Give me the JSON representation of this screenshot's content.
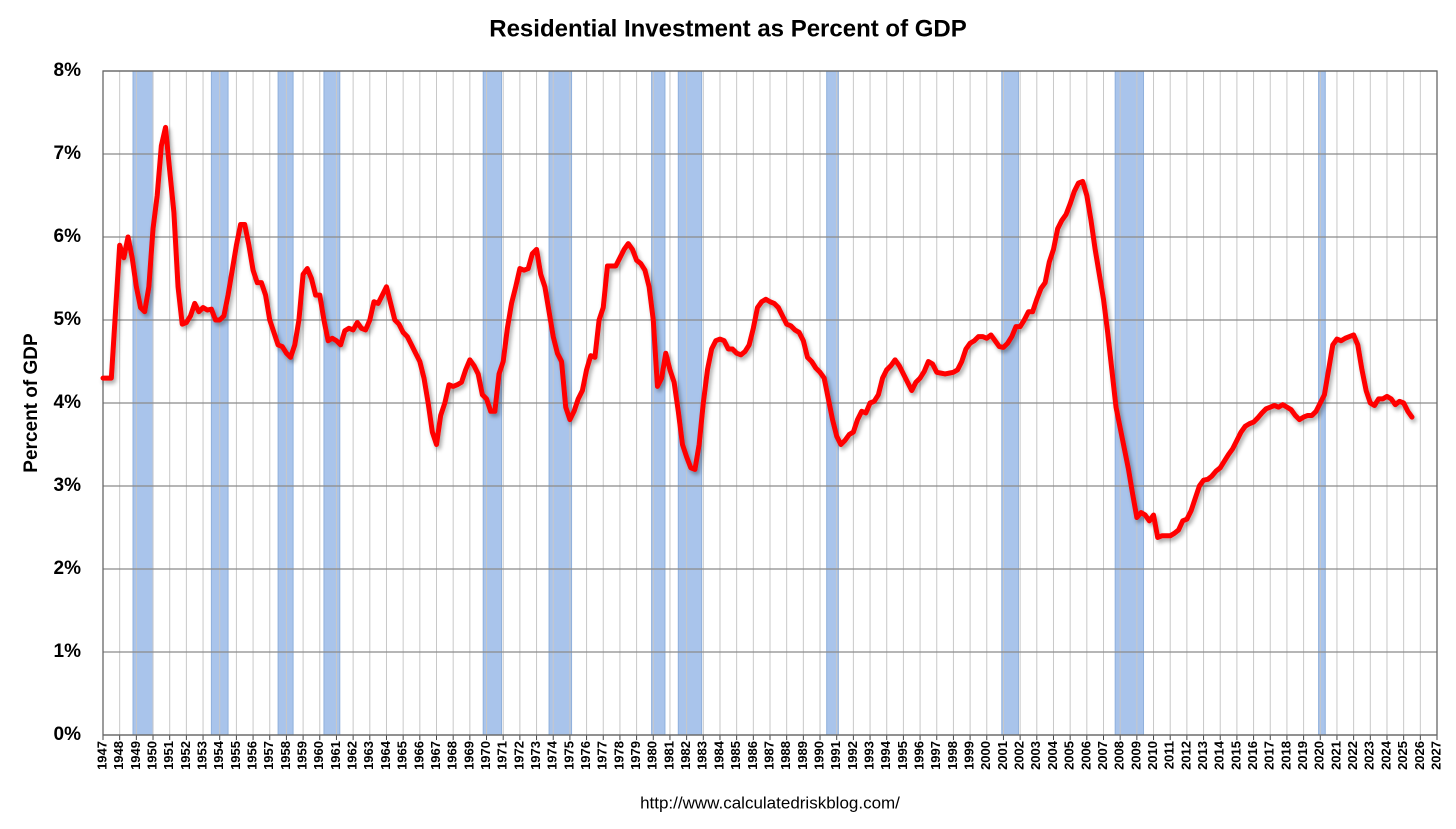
{
  "chart_data": {
    "type": "line",
    "title": "Residential Investment as Percent of GDP",
    "y_label": "Percent of GDP",
    "source": "http://www.calculatedriskblog.com/",
    "xlim": [
      1947,
      2027
    ],
    "ylim": [
      0,
      8
    ],
    "yticks": [
      {
        "value": 0,
        "label": "0%"
      },
      {
        "value": 1,
        "label": "1%"
      },
      {
        "value": 2,
        "label": "2%"
      },
      {
        "value": 3,
        "label": "3%"
      },
      {
        "value": 4,
        "label": "4%"
      },
      {
        "value": 5,
        "label": "5%"
      },
      {
        "value": 6,
        "label": "6%"
      },
      {
        "value": 7,
        "label": "7%"
      },
      {
        "value": 8,
        "label": "8%"
      }
    ],
    "xticks": [
      1947,
      1948,
      1949,
      1950,
      1951,
      1952,
      1953,
      1954,
      1955,
      1956,
      1957,
      1958,
      1959,
      1960,
      1961,
      1962,
      1963,
      1964,
      1965,
      1966,
      1967,
      1968,
      1969,
      1970,
      1971,
      1972,
      1973,
      1974,
      1975,
      1976,
      1977,
      1978,
      1979,
      1980,
      1981,
      1982,
      1983,
      1984,
      1985,
      1986,
      1987,
      1988,
      1989,
      1990,
      1991,
      1992,
      1993,
      1994,
      1995,
      1996,
      1997,
      1998,
      1999,
      2000,
      2001,
      2002,
      2003,
      2004,
      2005,
      2006,
      2007,
      2008,
      2009,
      2010,
      2011,
      2012,
      2013,
      2014,
      2015,
      2016,
      2017,
      2018,
      2019,
      2020,
      2021,
      2022,
      2023,
      2024,
      2025,
      2026,
      2027
    ],
    "grid": true,
    "recession_color": "#a9c4eb",
    "recessions": [
      [
        1948.8,
        1950.0
      ],
      [
        1953.5,
        1954.5
      ],
      [
        1957.5,
        1958.4
      ],
      [
        1960.25,
        1961.2
      ],
      [
        1969.8,
        1970.9
      ],
      [
        1973.75,
        1975.1
      ],
      [
        1979.9,
        1980.7
      ],
      [
        1981.5,
        1982.9
      ],
      [
        1990.4,
        1991.1
      ],
      [
        2000.9,
        2001.9
      ],
      [
        2007.7,
        2009.4
      ],
      [
        2019.9,
        2020.3
      ]
    ],
    "series": [
      {
        "color": "#ff0000",
        "x": [
          1947,
          1947.25,
          1947.5,
          1947.75,
          1948,
          1948.25,
          1948.5,
          1948.75,
          1949,
          1949.25,
          1949.5,
          1949.75,
          1950,
          1950.25,
          1950.5,
          1950.75,
          1951,
          1951.25,
          1951.5,
          1951.75,
          1952,
          1952.25,
          1952.5,
          1952.75,
          1953,
          1953.25,
          1953.5,
          1953.75,
          1954,
          1954.25,
          1954.5,
          1954.75,
          1955,
          1955.25,
          1955.5,
          1955.75,
          1956,
          1956.25,
          1956.5,
          1956.75,
          1957,
          1957.25,
          1957.5,
          1957.75,
          1958,
          1958.25,
          1958.5,
          1958.75,
          1959,
          1959.25,
          1959.5,
          1959.75,
          1960,
          1960.25,
          1960.5,
          1960.75,
          1961,
          1961.25,
          1961.5,
          1961.75,
          1962,
          1962.25,
          1962.5,
          1962.75,
          1963,
          1963.25,
          1963.5,
          1963.75,
          1964,
          1964.25,
          1964.5,
          1964.75,
          1965,
          1965.25,
          1965.5,
          1965.75,
          1966,
          1966.25,
          1966.5,
          1966.75,
          1967,
          1967.25,
          1967.5,
          1967.75,
          1968,
          1968.25,
          1968.5,
          1968.75,
          1969,
          1969.25,
          1969.5,
          1969.75,
          1970,
          1970.25,
          1970.5,
          1970.75,
          1971,
          1971.25,
          1971.5,
          1971.75,
          1972,
          1972.25,
          1972.5,
          1972.75,
          1973,
          1973.25,
          1973.5,
          1973.75,
          1974,
          1974.25,
          1974.5,
          1974.75,
          1975,
          1975.25,
          1975.5,
          1975.75,
          1976,
          1976.25,
          1976.5,
          1976.75,
          1977,
          1977.25,
          1977.5,
          1977.75,
          1978,
          1978.25,
          1978.5,
          1978.75,
          1979,
          1979.25,
          1979.5,
          1979.75,
          1980,
          1980.25,
          1980.5,
          1980.75,
          1981,
          1981.25,
          1981.5,
          1981.75,
          1982,
          1982.25,
          1982.5,
          1982.75,
          1983,
          1983.25,
          1983.5,
          1983.75,
          1984,
          1984.25,
          1984.5,
          1984.75,
          1985,
          1985.25,
          1985.5,
          1985.75,
          1986,
          1986.25,
          1986.5,
          1986.75,
          1987,
          1987.25,
          1987.5,
          1987.75,
          1988,
          1988.25,
          1988.5,
          1988.75,
          1989,
          1989.25,
          1989.5,
          1989.75,
          1990,
          1990.25,
          1990.5,
          1990.75,
          1991,
          1991.25,
          1991.5,
          1991.75,
          1992,
          1992.25,
          1992.5,
          1992.75,
          1993,
          1993.25,
          1993.5,
          1993.75,
          1994,
          1994.25,
          1994.5,
          1994.75,
          1995,
          1995.25,
          1995.5,
          1995.75,
          1996,
          1996.25,
          1996.5,
          1996.75,
          1997,
          1997.25,
          1997.5,
          1997.75,
          1998,
          1998.25,
          1998.5,
          1998.75,
          1999,
          1999.25,
          1999.5,
          1999.75,
          2000,
          2000.25,
          2000.5,
          2000.75,
          2001,
          2001.25,
          2001.5,
          2001.75,
          2002,
          2002.25,
          2002.5,
          2002.75,
          2003,
          2003.25,
          2003.5,
          2003.75,
          2004,
          2004.25,
          2004.5,
          2004.75,
          2005,
          2005.25,
          2005.5,
          2005.75,
          2006,
          2006.25,
          2006.5,
          2006.75,
          2007,
          2007.25,
          2007.5,
          2007.75,
          2008,
          2008.25,
          2008.5,
          2008.75,
          2009,
          2009.25,
          2009.5,
          2009.75,
          2010,
          2010.25,
          2010.5,
          2010.75,
          2011,
          2011.25,
          2011.5,
          2011.75,
          2012,
          2012.25,
          2012.5,
          2012.75,
          2013,
          2013.25,
          2013.5,
          2013.75,
          2014,
          2014.25,
          2014.5,
          2014.75,
          2015,
          2015.25,
          2015.5,
          2015.75,
          2016,
          2016.25,
          2016.5,
          2016.75,
          2017,
          2017.25,
          2017.5,
          2017.75,
          2018,
          2018.25,
          2018.5,
          2018.75,
          2019,
          2019.25,
          2019.5,
          2019.75,
          2020,
          2020.25,
          2020.5,
          2020.75,
          2021,
          2021.25,
          2021.5,
          2021.75,
          2022,
          2022.25,
          2022.5,
          2022.75,
          2023,
          2023.25,
          2023.5,
          2023.75,
          2024,
          2024.25,
          2024.5,
          2024.75,
          2025,
          2025.25,
          2025.5
        ],
        "values": [
          4.3,
          4.3,
          4.3,
          5.1,
          5.9,
          5.75,
          6.0,
          5.75,
          5.4,
          5.15,
          5.1,
          5.4,
          6.1,
          6.5,
          7.1,
          7.32,
          6.8,
          6.3,
          5.4,
          4.95,
          4.97,
          5.05,
          5.2,
          5.1,
          5.15,
          5.12,
          5.13,
          5.0,
          5.0,
          5.05,
          5.3,
          5.6,
          5.9,
          6.15,
          6.15,
          5.9,
          5.6,
          5.45,
          5.45,
          5.3,
          5.0,
          4.85,
          4.7,
          4.68,
          4.6,
          4.55,
          4.7,
          5.0,
          5.55,
          5.62,
          5.5,
          5.3,
          5.3,
          5.0,
          4.75,
          4.78,
          4.75,
          4.7,
          4.87,
          4.9,
          4.88,
          4.97,
          4.9,
          4.88,
          5.0,
          5.22,
          5.2,
          5.3,
          5.4,
          5.2,
          5.0,
          4.95,
          4.85,
          4.8,
          4.7,
          4.6,
          4.5,
          4.3,
          4.0,
          3.65,
          3.5,
          3.85,
          4.0,
          4.22,
          4.2,
          4.22,
          4.25,
          4.4,
          4.52,
          4.45,
          4.35,
          4.1,
          4.05,
          3.9,
          3.9,
          4.35,
          4.5,
          4.9,
          5.2,
          5.4,
          5.62,
          5.6,
          5.62,
          5.8,
          5.85,
          5.55,
          5.4,
          5.1,
          4.8,
          4.6,
          4.5,
          3.95,
          3.8,
          3.9,
          4.05,
          4.15,
          4.4,
          4.57,
          4.55,
          5.0,
          5.15,
          5.65,
          5.65,
          5.65,
          5.75,
          5.85,
          5.92,
          5.85,
          5.72,
          5.68,
          5.6,
          5.4,
          5.0,
          4.2,
          4.3,
          4.6,
          4.4,
          4.25,
          3.9,
          3.5,
          3.35,
          3.22,
          3.2,
          3.5,
          4.0,
          4.4,
          4.65,
          4.75,
          4.77,
          4.75,
          4.65,
          4.65,
          4.6,
          4.58,
          4.62,
          4.7,
          4.9,
          5.15,
          5.22,
          5.25,
          5.22,
          5.2,
          5.15,
          5.05,
          4.95,
          4.93,
          4.88,
          4.85,
          4.75,
          4.55,
          4.5,
          4.42,
          4.37,
          4.3,
          4.05,
          3.8,
          3.6,
          3.5,
          3.55,
          3.62,
          3.65,
          3.8,
          3.9,
          3.88,
          4.0,
          4.02,
          4.1,
          4.3,
          4.4,
          4.45,
          4.52,
          4.45,
          4.35,
          4.25,
          4.15,
          4.25,
          4.3,
          4.38,
          4.5,
          4.47,
          4.37,
          4.36,
          4.35,
          4.36,
          4.37,
          4.4,
          4.5,
          4.65,
          4.72,
          4.75,
          4.8,
          4.8,
          4.78,
          4.82,
          4.75,
          4.68,
          4.67,
          4.72,
          4.8,
          4.92,
          4.92,
          5.0,
          5.1,
          5.1,
          5.25,
          5.38,
          5.45,
          5.7,
          5.85,
          6.1,
          6.2,
          6.27,
          6.4,
          6.55,
          6.65,
          6.67,
          6.5,
          6.2,
          5.85,
          5.55,
          5.25,
          4.85,
          4.4,
          3.95,
          3.7,
          3.45,
          3.2,
          2.9,
          2.62,
          2.68,
          2.65,
          2.58,
          2.65,
          2.38,
          2.4,
          2.4,
          2.4,
          2.43,
          2.47,
          2.58,
          2.6,
          2.7,
          2.85,
          3.0,
          3.07,
          3.08,
          3.12,
          3.18,
          3.22,
          3.3,
          3.38,
          3.45,
          3.55,
          3.65,
          3.72,
          3.75,
          3.77,
          3.82,
          3.88,
          3.93,
          3.95,
          3.97,
          3.95,
          3.98,
          3.95,
          3.92,
          3.85,
          3.8,
          3.83,
          3.85,
          3.85,
          3.9,
          4.0,
          4.1,
          4.4,
          4.7,
          4.77,
          4.75,
          4.78,
          4.8,
          4.82,
          4.7,
          4.4,
          4.15,
          4.0,
          3.97,
          4.05,
          4.05,
          4.08,
          4.05,
          3.98,
          4.02,
          4.0,
          3.9,
          3.83
        ]
      }
    ]
  }
}
